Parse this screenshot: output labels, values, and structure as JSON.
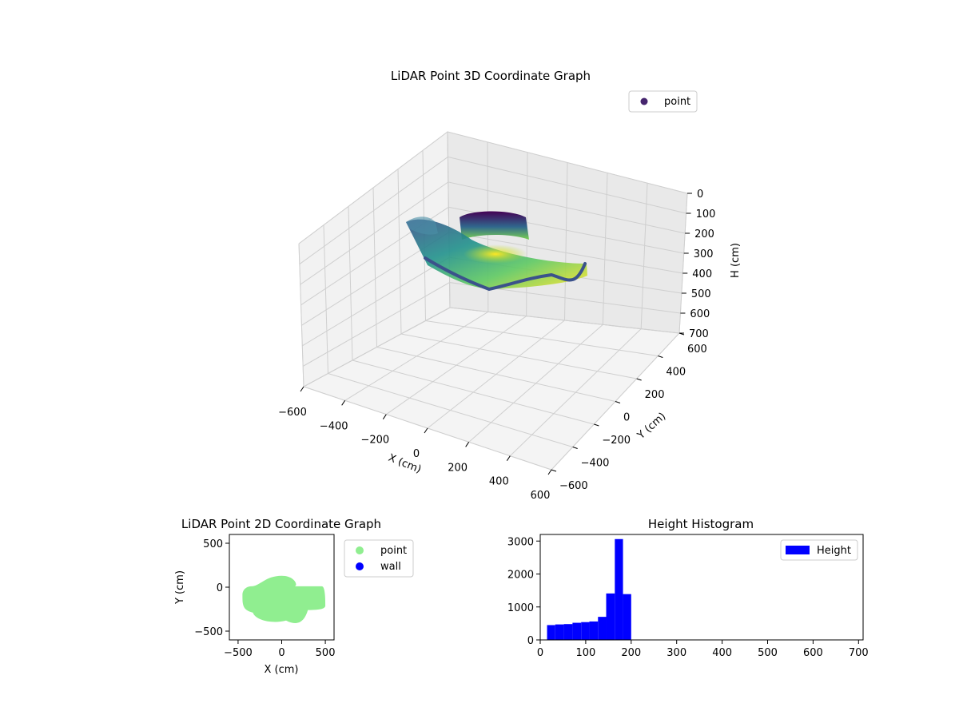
{
  "chart_data": [
    {
      "type": "scatter3d",
      "title": "LiDAR Point 3D Coordinate Graph",
      "xlabel": "X (cm)",
      "ylabel": "Y (cm)",
      "zlabel": "H (cm)",
      "xlim": [
        -600,
        600
      ],
      "ylim": [
        -600,
        600
      ],
      "zlim": [
        0,
        700
      ],
      "z_inverted": true,
      "x_ticks": [
        "−600",
        "−400",
        "−200",
        "0",
        "200",
        "400",
        "600"
      ],
      "y_ticks": [
        "−600",
        "−400",
        "−200",
        "0",
        "200",
        "400",
        "600"
      ],
      "z_ticks": [
        "0",
        "100",
        "200",
        "300",
        "400",
        "500",
        "600",
        "700"
      ],
      "grid": true,
      "colormap": "viridis",
      "legend": {
        "placement": "top-right",
        "entries": [
          {
            "label": "point",
            "color": "#46256e"
          }
        ]
      }
    },
    {
      "type": "scatter",
      "title": "LiDAR Point 2D Coordinate Graph",
      "xlabel": "X (cm)",
      "ylabel": "Y (cm)",
      "xlim": [
        -600,
        600
      ],
      "ylim": [
        -600,
        600
      ],
      "x_ticks": [
        "−500",
        "0",
        "500"
      ],
      "y_ticks": [
        "500",
        "0",
        "−500"
      ],
      "series": [
        {
          "name": "point",
          "color": "#90ee90",
          "extent": {
            "x": [
              -450,
              500
            ],
            "y": [
              -430,
              130
            ]
          }
        },
        {
          "name": "wall",
          "color": "#0000ff",
          "extent": null
        }
      ],
      "legend": {
        "placement": "outside-right"
      }
    },
    {
      "type": "bar",
      "title": "Height Histogram",
      "xlim": [
        0,
        710
      ],
      "ylim": [
        0,
        3200
      ],
      "x_ticks": [
        "0",
        "100",
        "200",
        "300",
        "400",
        "500",
        "600",
        "700"
      ],
      "y_ticks": [
        "0",
        "1000",
        "2000",
        "3000"
      ],
      "color": "#0000ff",
      "bins": [
        {
          "x0": 15,
          "x1": 33,
          "value": 450
        },
        {
          "x0": 33,
          "x1": 52,
          "value": 470
        },
        {
          "x0": 52,
          "x1": 71,
          "value": 480
        },
        {
          "x0": 71,
          "x1": 90,
          "value": 520
        },
        {
          "x0": 90,
          "x1": 108,
          "value": 540
        },
        {
          "x0": 108,
          "x1": 127,
          "value": 560
        },
        {
          "x0": 127,
          "x1": 145,
          "value": 700
        },
        {
          "x0": 145,
          "x1": 164,
          "value": 1410
        },
        {
          "x0": 164,
          "x1": 182,
          "value": 3060
        },
        {
          "x0": 182,
          "x1": 200,
          "value": 1390
        }
      ],
      "legend": {
        "placement": "top-right",
        "entries": [
          {
            "label": "Height",
            "color": "#0000ff"
          }
        ]
      }
    }
  ]
}
